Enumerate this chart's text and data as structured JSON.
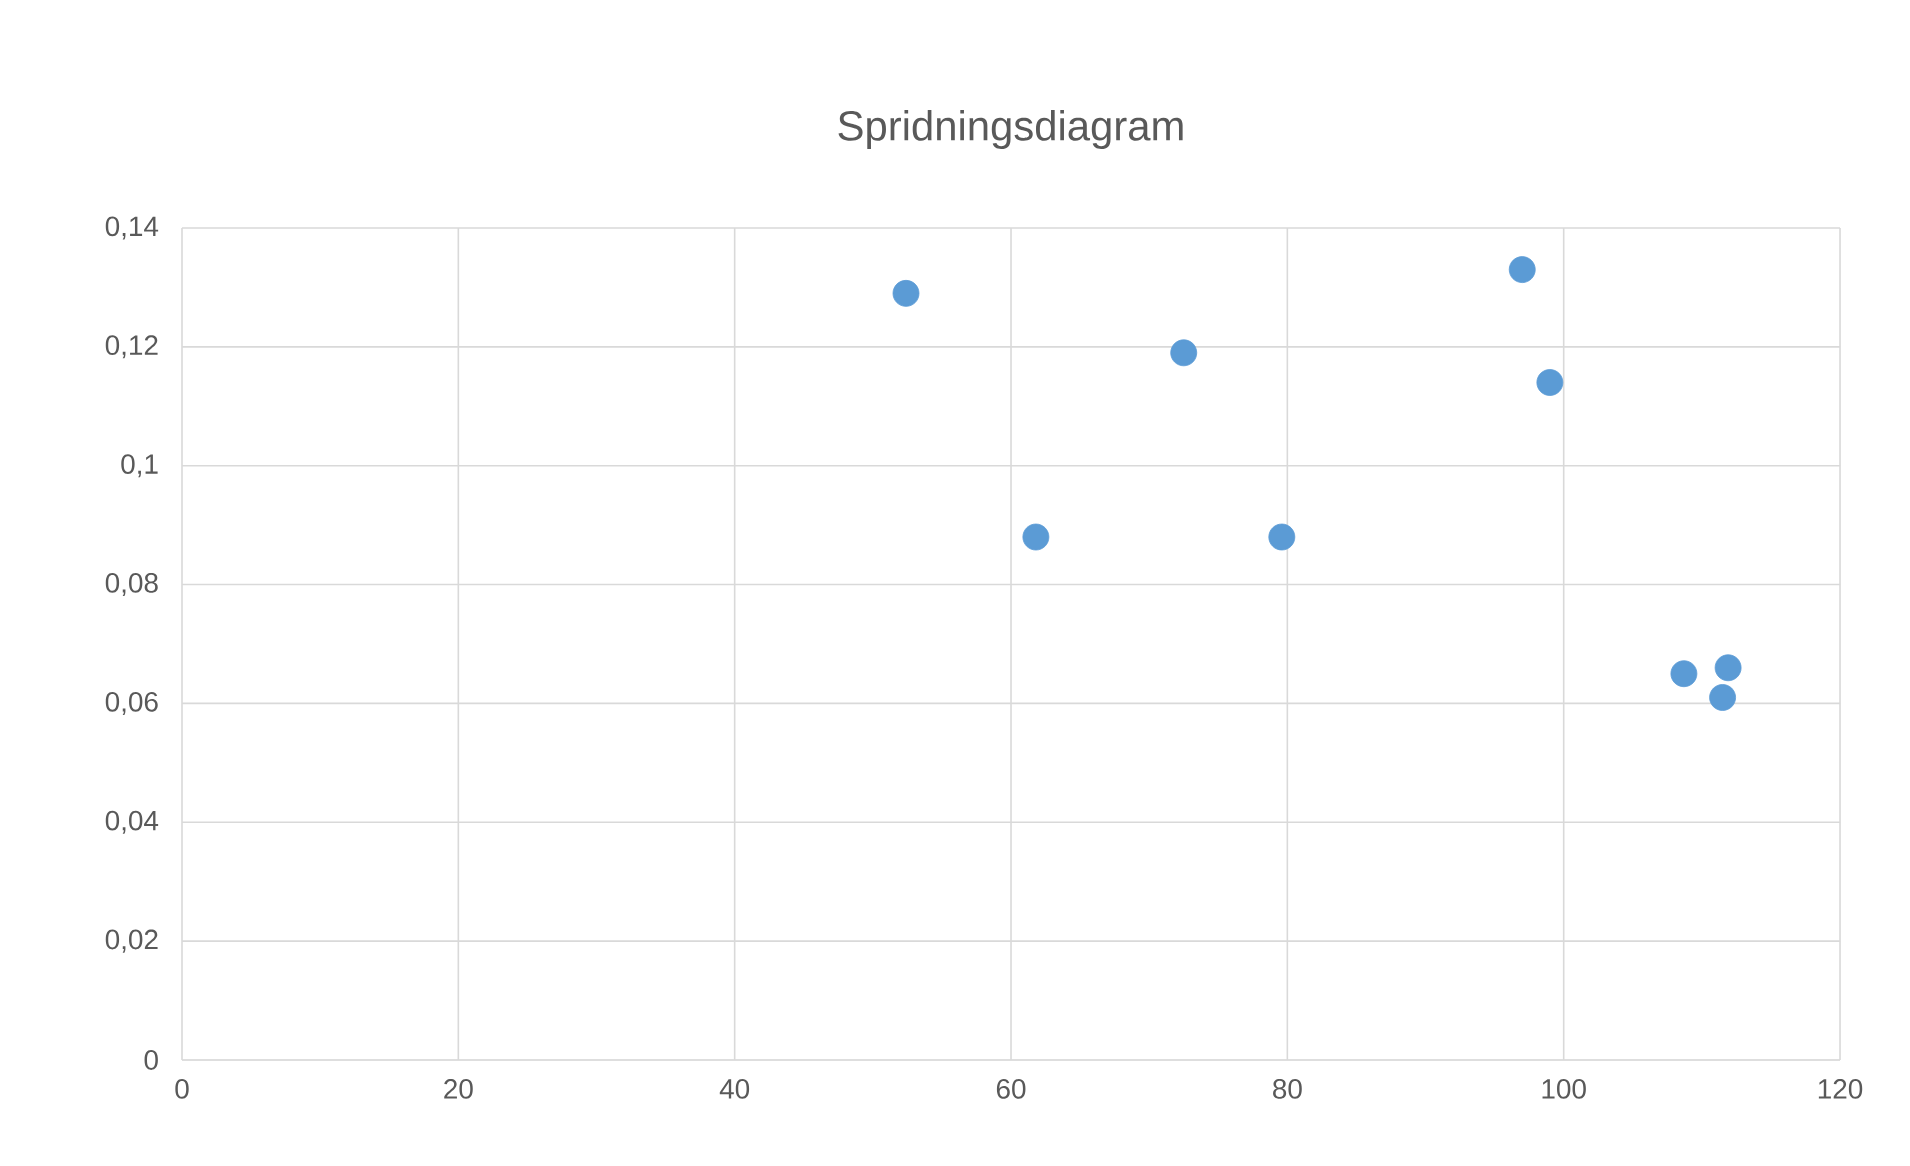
{
  "chart_data": {
    "type": "scatter",
    "title": "Spridningsdiagram",
    "x": [
      52.4,
      61.8,
      72.5,
      79.6,
      97.0,
      99.0,
      108.7,
      111.9,
      111.5
    ],
    "values": [
      0.129,
      0.088,
      0.119,
      0.088,
      0.133,
      0.114,
      0.065,
      0.066,
      0.061
    ],
    "color": "#5b9bd5",
    "marker": "circle",
    "grid": true,
    "xlim": [
      0,
      120
    ],
    "xticks": [
      0,
      20,
      40,
      60,
      80,
      100,
      120
    ],
    "ylim": [
      0,
      0.14
    ],
    "yticks": [
      0,
      {
        "value": 0.02,
        "label": "0,02"
      },
      {
        "value": 0.04,
        "label": "0,04"
      },
      {
        "value": 0.06,
        "label": "0,06"
      },
      {
        "value": 0.08,
        "label": "0,08"
      },
      {
        "value": 0.1,
        "label": "0,1"
      },
      {
        "value": 0.12,
        "label": "0,12"
      },
      {
        "value": 0.14,
        "label": "0,14"
      }
    ]
  }
}
